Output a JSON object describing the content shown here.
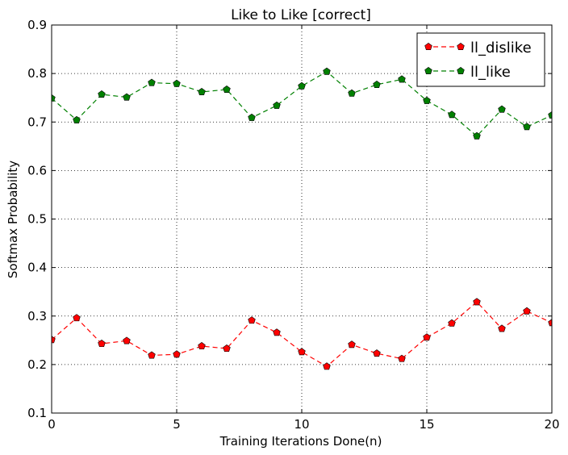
{
  "chart_data": {
    "type": "line",
    "title": "Like to Like [correct]",
    "xlabel": "Training Iterations Done(n)",
    "ylabel": "Softmax Probability",
    "xlim": [
      0,
      20
    ],
    "ylim": [
      0.1,
      0.9
    ],
    "xticks": [
      "0",
      "5",
      "10",
      "15",
      "20"
    ],
    "xtick_values": [
      0,
      5,
      10,
      15,
      20
    ],
    "yticks": [
      "0.1",
      "0.2",
      "0.3",
      "0.4",
      "0.5",
      "0.6",
      "0.7",
      "0.8",
      "0.9"
    ],
    "ytick_values": [
      0.1,
      0.2,
      0.3,
      0.4,
      0.5,
      0.6,
      0.7,
      0.8,
      0.9
    ],
    "grid": true,
    "legend_position": "top-right",
    "x": [
      0,
      1,
      2,
      3,
      4,
      5,
      6,
      7,
      8,
      9,
      10,
      11,
      12,
      13,
      14,
      15,
      16,
      17,
      18,
      19,
      20
    ],
    "series": [
      {
        "name": "ll_dislike",
        "color": "#ff0000",
        "marker": "pentagon",
        "line_style": "dashed",
        "values": [
          0.251,
          0.296,
          0.243,
          0.249,
          0.219,
          0.221,
          0.238,
          0.233,
          0.291,
          0.266,
          0.226,
          0.196,
          0.241,
          0.223,
          0.212,
          0.256,
          0.285,
          0.329,
          0.274,
          0.31,
          0.286
        ]
      },
      {
        "name": "ll_like",
        "color": "#008000",
        "marker": "pentagon",
        "line_style": "dashed",
        "values": [
          0.749,
          0.704,
          0.757,
          0.751,
          0.781,
          0.779,
          0.762,
          0.767,
          0.709,
          0.734,
          0.774,
          0.804,
          0.759,
          0.777,
          0.788,
          0.744,
          0.715,
          0.671,
          0.726,
          0.69,
          0.714
        ]
      }
    ]
  }
}
